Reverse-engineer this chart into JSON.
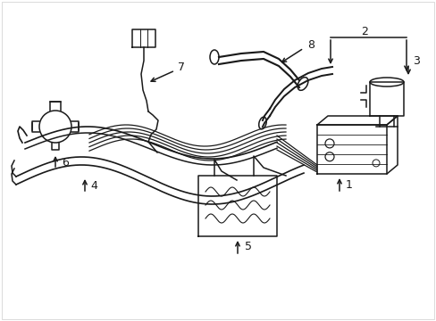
{
  "bg_color": "#ffffff",
  "line_color": "#1a1a1a",
  "lw": 1.1,
  "fig_width": 4.89,
  "fig_height": 3.6,
  "dpi": 100
}
